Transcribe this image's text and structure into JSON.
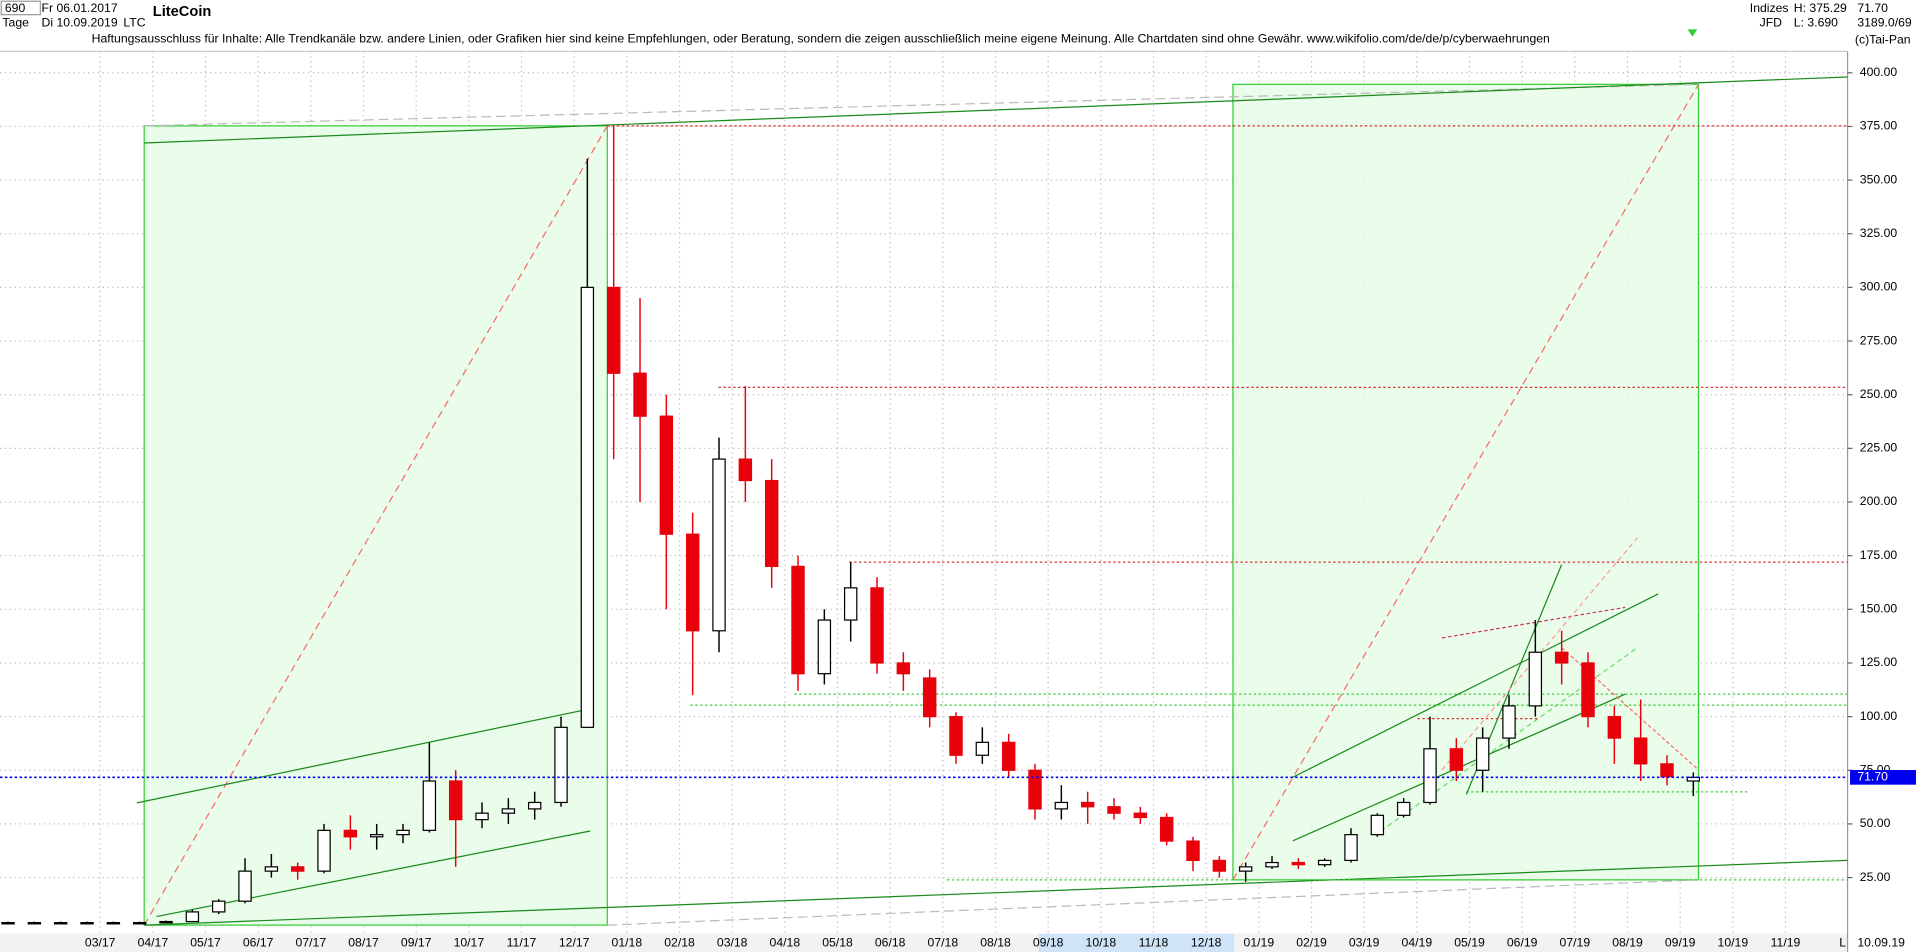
{
  "header": {
    "bars": "690",
    "period": "Tage",
    "from_date": "Fr 06.01.2017",
    "to_date": "Di 10.09.2019",
    "symbol": "LTC",
    "disclaimer": "Haftungsausschluss für Inhalte: Alle Trendkanäle bzw. andere Linien, oder Grafiken hier sind keine Empfehlungen, oder Beratung, sondern die zeigen ausschließlich meine eigene Meinung. Alle Chartdaten sind ohne Gewähr.  www.wikifolio.com/de/de/p/cyberwaehrungen",
    "group": "Indizes",
    "source": "JFD",
    "high_label": "H: 375.29",
    "low_label": "L: 3.690",
    "last_label": "71.70",
    "counter": "3189.0/69",
    "copyright": "(c)Tai-Pan"
  },
  "footer": {
    "date": "10.09.19",
    "scale": "L"
  },
  "chart_data": {
    "type": "candlestick",
    "title": "LiteCoin",
    "categories": [
      null,
      null,
      null,
      null,
      "03/17",
      null,
      "04/17",
      null,
      "05/17",
      null,
      "06/17",
      null,
      "07/17",
      null,
      "08/17",
      null,
      "09/17",
      null,
      "10/17",
      null,
      "11/17",
      null,
      "12/17",
      null,
      "01/18",
      null,
      "02/18",
      null,
      "03/18",
      null,
      "04/18",
      null,
      "05/18",
      null,
      "06/18",
      null,
      "07/18",
      null,
      "08/18",
      null,
      "09/18",
      null,
      "10/18",
      null,
      "11/18",
      null,
      "12/18",
      null,
      "01/19",
      null,
      "02/19",
      null,
      "03/19",
      null,
      "04/19",
      null,
      "05/19",
      null,
      "06/19",
      null,
      "07/19",
      null,
      "08/19",
      null,
      "09/19",
      null,
      "10/19",
      null,
      "11/19",
      null
    ],
    "open": [
      4,
      4,
      4,
      4,
      4,
      4,
      4,
      4.5,
      9,
      14,
      28,
      30,
      28,
      47,
      44,
      45,
      47,
      70,
      52,
      55,
      57,
      60,
      95,
      300,
      260,
      240,
      185,
      140,
      220,
      210,
      170,
      120,
      145,
      160,
      125,
      118,
      100,
      82,
      88,
      75,
      57,
      60,
      58,
      55,
      53,
      42,
      33,
      28,
      30,
      32,
      31,
      33,
      45,
      54,
      60,
      85,
      75,
      90,
      105,
      130,
      125,
      100,
      90,
      78,
      70,
      null,
      null,
      null,
      null,
      null
    ],
    "high": [
      4.5,
      4.5,
      4.5,
      4.5,
      4.5,
      4.5,
      5,
      10,
      15,
      34,
      36,
      32,
      50,
      54,
      50,
      50,
      88,
      75,
      60,
      62,
      65,
      100,
      360,
      375,
      295,
      250,
      195,
      230,
      254,
      220,
      175,
      150,
      172,
      165,
      130,
      122,
      102,
      95,
      92,
      78,
      68,
      65,
      62,
      58,
      55,
      44,
      35,
      32,
      35,
      34,
      34,
      48,
      55,
      62,
      100,
      90,
      95,
      110,
      145,
      140,
      130,
      105,
      108,
      82,
      74,
      null,
      null,
      null,
      null,
      null
    ],
    "low": [
      3.5,
      3.5,
      3.5,
      3.5,
      3.5,
      3.5,
      3.8,
      4.5,
      8,
      13,
      25,
      24,
      27,
      38,
      38,
      41,
      46,
      30,
      48,
      50,
      52,
      58,
      95,
      220,
      200,
      150,
      110,
      130,
      200,
      160,
      112,
      115,
      135,
      120,
      112,
      95,
      78,
      78,
      72,
      52,
      52,
      50,
      52,
      50,
      40,
      28,
      25,
      23,
      29,
      29,
      30,
      32,
      44,
      53,
      59,
      70,
      65,
      85,
      100,
      115,
      95,
      78,
      70,
      68,
      63,
      null,
      null,
      null,
      null,
      null
    ],
    "close": [
      4,
      4,
      4,
      4,
      4,
      4,
      4.5,
      9,
      14,
      28,
      30,
      28,
      47,
      44,
      45,
      47,
      70,
      52,
      55,
      57,
      60,
      95,
      300,
      260,
      240,
      185,
      140,
      220,
      210,
      170,
      120,
      145,
      160,
      125,
      120,
      100,
      82,
      88,
      75,
      57,
      60,
      58,
      55,
      53,
      42,
      33,
      28,
      30,
      32,
      31,
      33,
      45,
      54,
      60,
      85,
      75,
      90,
      105,
      130,
      125,
      100,
      90,
      78,
      72,
      71.7,
      null,
      null,
      null,
      null,
      null
    ],
    "up_color": "#000000",
    "down_color": "#e8000b",
    "ylim": [
      0,
      410
    ],
    "yticks": [
      {
        "value": 25,
        "label": "25.00"
      },
      {
        "value": 50,
        "label": "50.00"
      },
      {
        "value": 75,
        "label": "75.00"
      },
      {
        "value": 100,
        "label": "100.00"
      },
      {
        "value": 125,
        "label": "125.00"
      },
      {
        "value": 150,
        "label": "150.00"
      },
      {
        "value": 175,
        "label": "175.00"
      },
      {
        "value": 200,
        "label": "200.00"
      },
      {
        "value": 225,
        "label": "225.00"
      },
      {
        "value": 250,
        "label": "250.00"
      },
      {
        "value": 275,
        "label": "275.00"
      },
      {
        "value": 300,
        "label": "300.00"
      },
      {
        "value": 325,
        "label": "325.00"
      },
      {
        "value": 350,
        "label": "350.00"
      },
      {
        "value": 375,
        "label": "375.00"
      },
      {
        "value": 400,
        "label": "400.00"
      }
    ],
    "last_value": {
      "value": 71.7,
      "label": "71.70"
    },
    "grid": true
  }
}
